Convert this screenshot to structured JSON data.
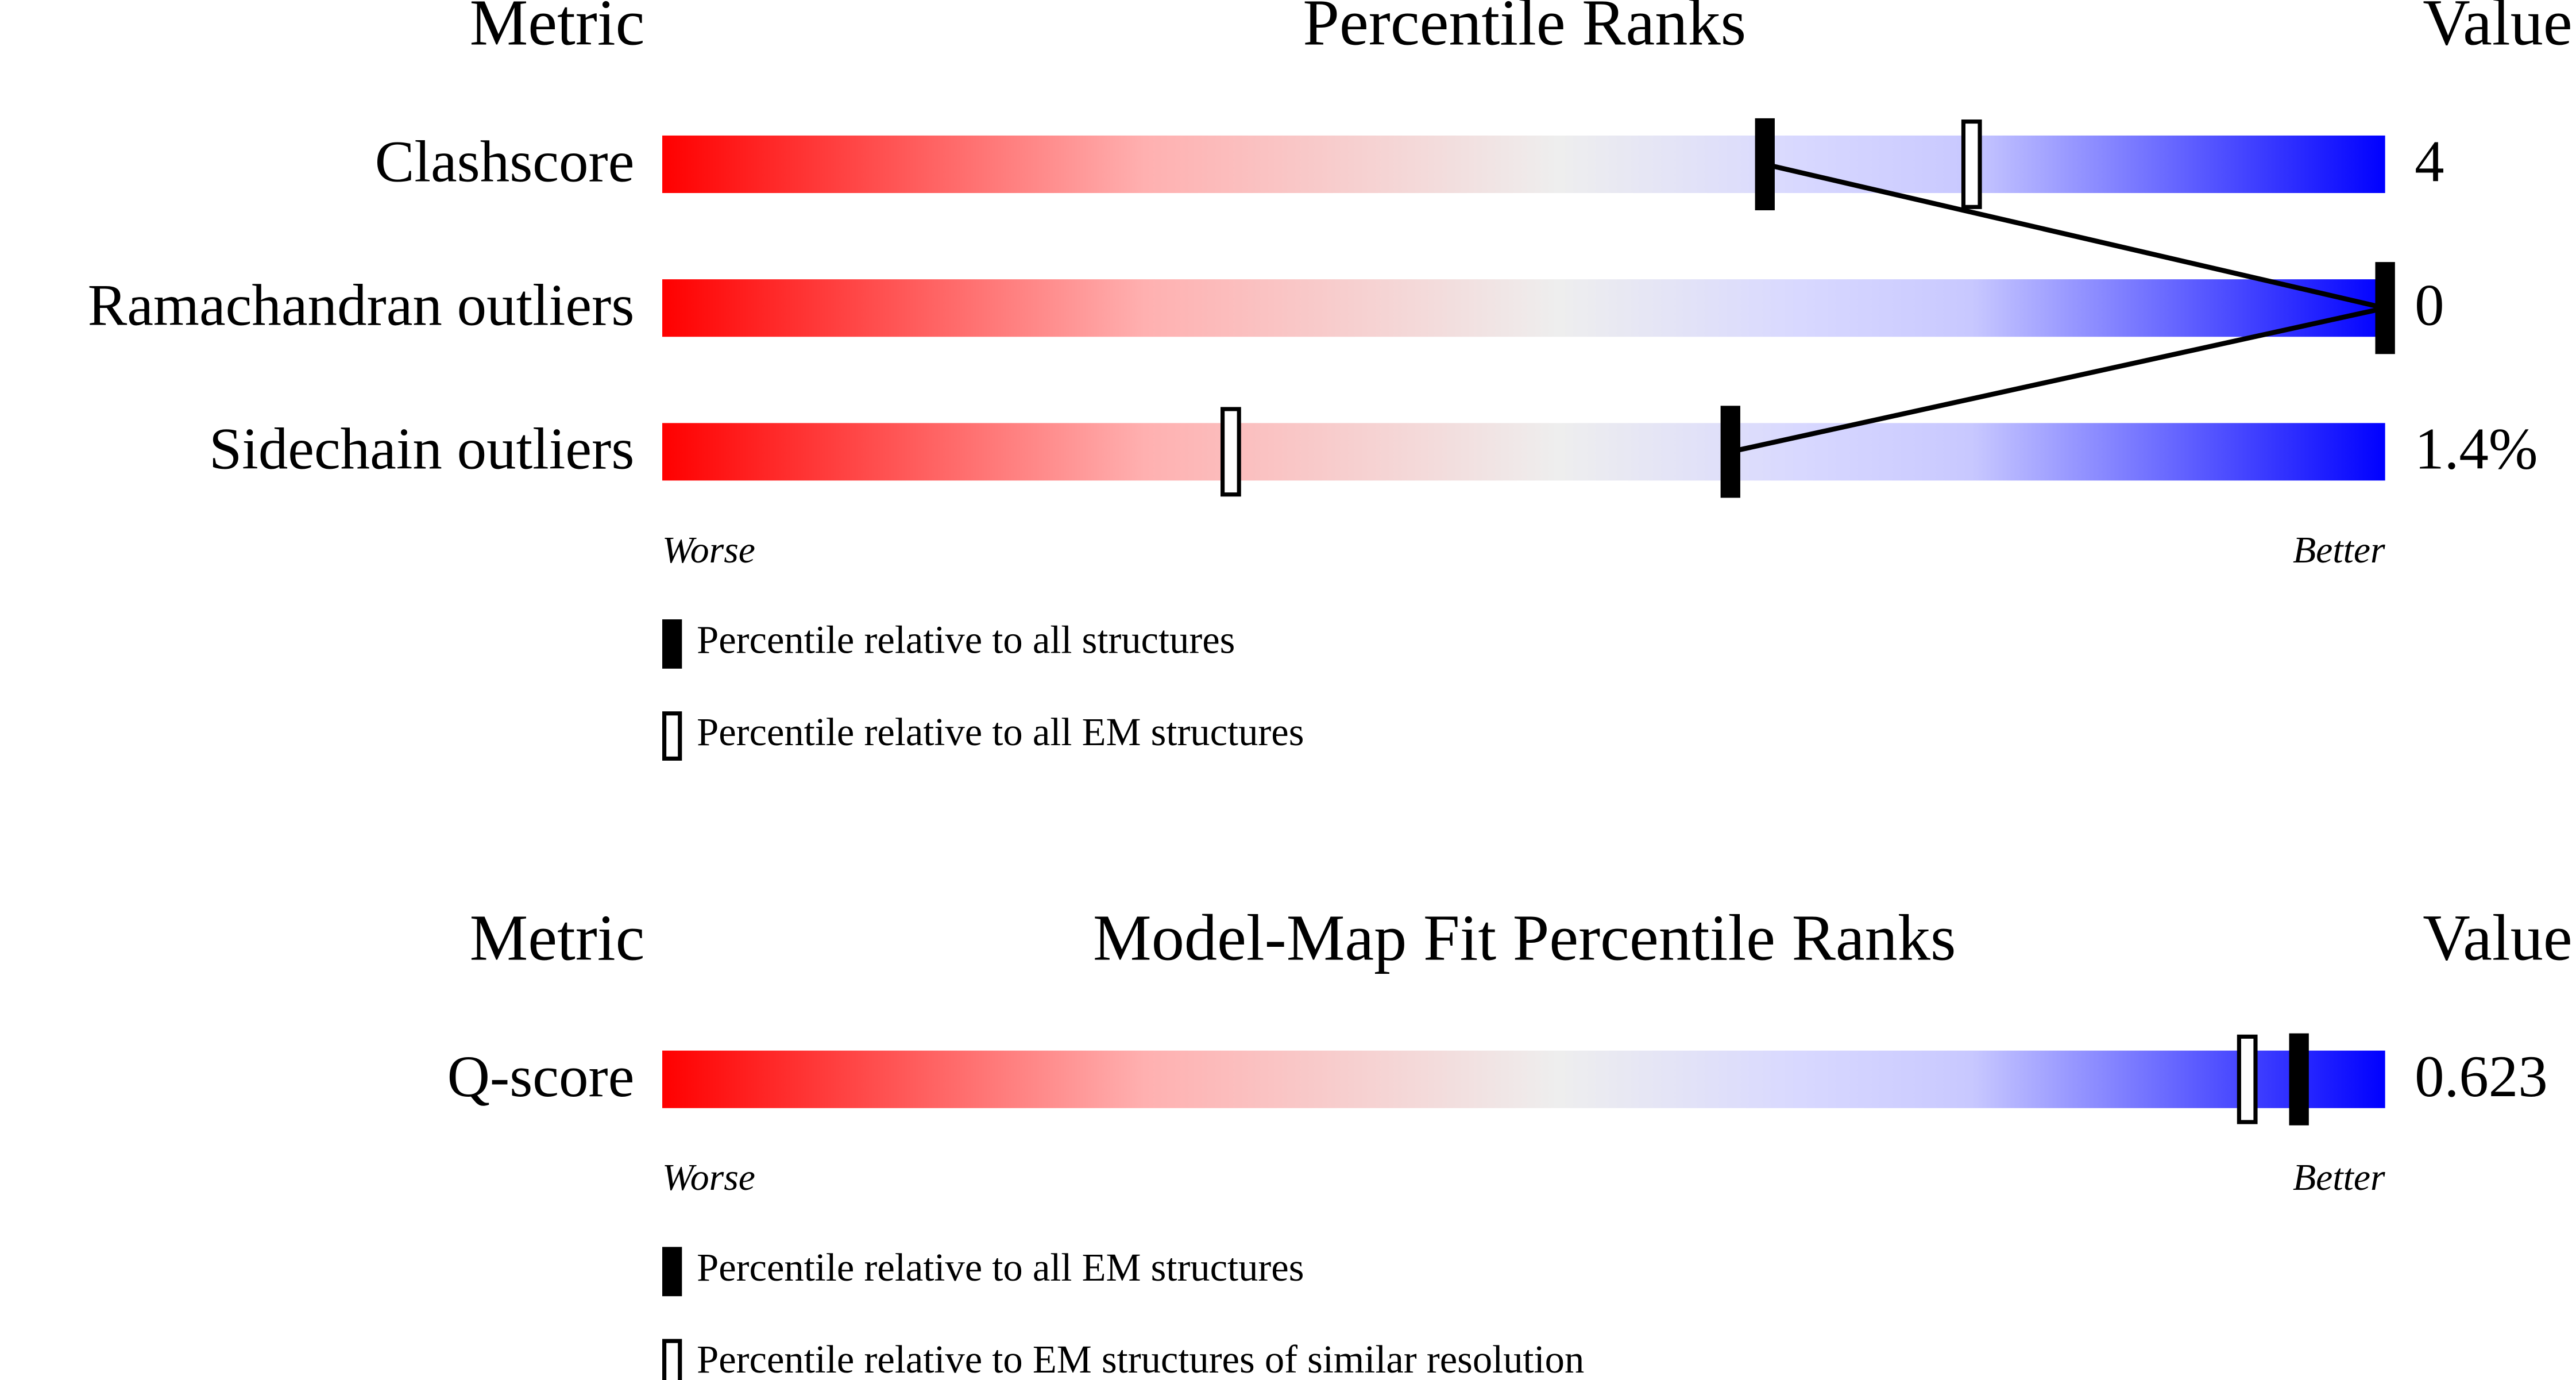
{
  "panels": [
    {
      "headers": {
        "metric": "Metric",
        "title": "Percentile Ranks",
        "value": "Value"
      },
      "xlim": [
        0,
        100
      ],
      "metrics": [
        {
          "name": "Clashscore",
          "value": "4",
          "percentile_all": 64,
          "percentile_em": 76
        },
        {
          "name": "Ramachandran outliers",
          "value": "0",
          "percentile_all": 100
        },
        {
          "name": "Sidechain outliers",
          "value": "1.4%",
          "percentile_all": 62,
          "percentile_em": 33
        }
      ],
      "worse": "Worse",
      "better": "Better",
      "legend": [
        "Percentile relative to all structures",
        "Percentile relative to all EM structures"
      ]
    },
    {
      "headers": {
        "metric": "Metric",
        "title": "Model-Map Fit Percentile Ranks",
        "value": "Value"
      },
      "xlim": [
        0,
        100
      ],
      "metrics": [
        {
          "name": "Q-score",
          "value": "0.623",
          "percentile_all": 95,
          "percentile_em": 92
        }
      ],
      "worse": "Worse",
      "better": "Better",
      "legend": [
        "Percentile relative to all EM structures",
        "Percentile relative to EM structures of similar resolution"
      ]
    }
  ]
}
